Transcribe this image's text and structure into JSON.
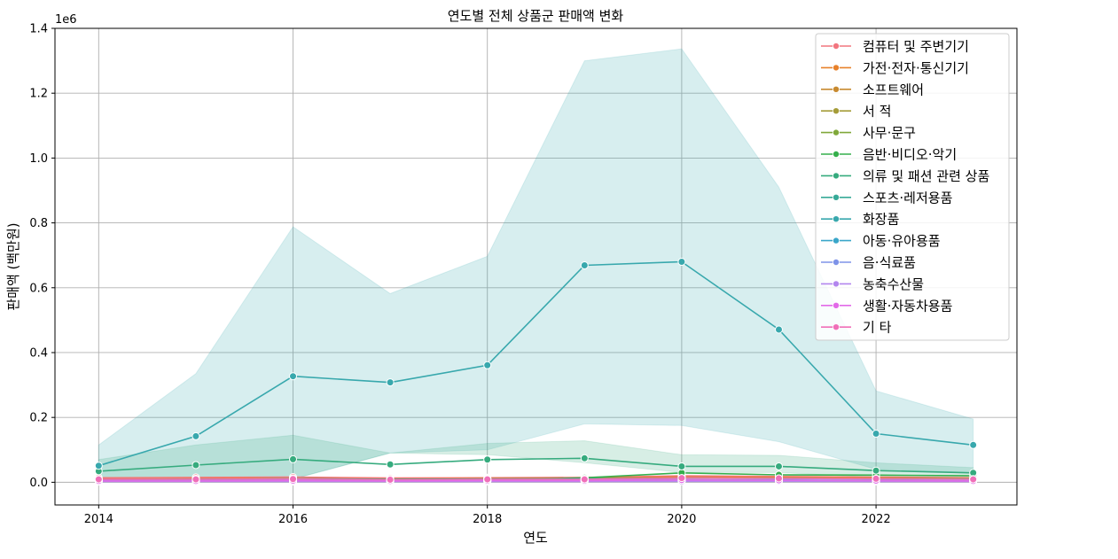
{
  "chart_data": {
    "type": "line",
    "title": "연도별 전체 상품군 판매액 변화",
    "xlabel": "연도",
    "ylabel": "판매액 (백만원)",
    "y_offset_text": "1e6",
    "x_range": [
      2013.55,
      2023.45
    ],
    "y_range": [
      -70000,
      1400000
    ],
    "x_ticks": [
      2014,
      2016,
      2018,
      2020,
      2022
    ],
    "y_ticks": [
      0,
      200000,
      400000,
      600000,
      800000,
      1000000,
      1200000,
      1400000
    ],
    "y_tick_labels": [
      "0.0",
      "0.2",
      "0.4",
      "0.6",
      "0.8",
      "1.0",
      "1.2",
      "1.4"
    ],
    "grid": true,
    "legend_position": "top-right",
    "x": [
      2014,
      2015,
      2016,
      2017,
      2018,
      2019,
      2020,
      2021,
      2022,
      2023
    ],
    "series": [
      {
        "name": "컴퓨터 및 주변기기",
        "color": "#f2767f",
        "values": [
          14000,
          15000,
          16000,
          13000,
          14000,
          15000,
          20000,
          18000,
          16000,
          14000
        ]
      },
      {
        "name": "가전·전자·통신기기",
        "color": "#e8812b",
        "values": [
          10000,
          11000,
          12000,
          10000,
          12000,
          13000,
          16000,
          15000,
          14000,
          12000
        ]
      },
      {
        "name": "소프트웨어",
        "color": "#c88a30",
        "values": [
          5000,
          5000,
          5000,
          4000,
          4000,
          4000,
          5000,
          5000,
          4000,
          4000
        ]
      },
      {
        "name": "서 적",
        "color": "#a59c38",
        "values": [
          9000,
          9000,
          10000,
          9000,
          10000,
          10000,
          12000,
          12000,
          11000,
          10000
        ]
      },
      {
        "name": "사무·문구",
        "color": "#80a83a",
        "values": [
          3000,
          3000,
          3000,
          3000,
          3000,
          3000,
          4000,
          4000,
          3000,
          3000
        ]
      },
      {
        "name": "음반·비디오·악기",
        "color": "#35af4b",
        "values": [
          3000,
          3000,
          3000,
          3000,
          4000,
          14000,
          29000,
          23000,
          22000,
          20000
        ]
      },
      {
        "name": "의류 및 패션 관련 상품",
        "color": "#36ab7e",
        "values": [
          34000,
          53000,
          71000,
          55000,
          70000,
          74000,
          49000,
          49000,
          36000,
          29000
        ]
      },
      {
        "name": "스포츠·레저용품",
        "color": "#37aa98",
        "values": [
          8000,
          9000,
          11000,
          9000,
          10000,
          11000,
          13000,
          12000,
          11000,
          10000
        ]
      },
      {
        "name": "화장품",
        "color": "#38a8ad",
        "values": [
          51000,
          142000,
          327000,
          308000,
          361000,
          669000,
          680000,
          471000,
          150000,
          115000
        ]
      },
      {
        "name": "아동·유아용품",
        "color": "#3aa6c9",
        "values": [
          5000,
          5000,
          6000,
          5000,
          6000,
          6000,
          7000,
          6000,
          5000,
          5000
        ]
      },
      {
        "name": "음·식료품",
        "color": "#7e93e8",
        "values": [
          5000,
          5000,
          6000,
          5000,
          6000,
          6000,
          8000,
          7000,
          6000,
          5000
        ]
      },
      {
        "name": "농축수산물",
        "color": "#b386ee",
        "values": [
          2000,
          2000,
          2000,
          2000,
          2000,
          2000,
          3000,
          3000,
          2000,
          2000
        ]
      },
      {
        "name": "생활·자동차용품",
        "color": "#e26ae8",
        "values": [
          4000,
          4000,
          5000,
          4000,
          5000,
          5000,
          7000,
          6000,
          5000,
          4000
        ]
      },
      {
        "name": "기 타",
        "color": "#f06fb8",
        "values": [
          9000,
          9000,
          10000,
          8000,
          9000,
          9000,
          13000,
          12000,
          11000,
          9000
        ]
      }
    ],
    "confidence_bands": [
      {
        "series": "화장품",
        "lower": [
          10000,
          10000,
          10000,
          90000,
          100000,
          180000,
          175000,
          125000,
          40000,
          30000
        ],
        "upper": [
          115000,
          335000,
          788000,
          582000,
          697000,
          1300000,
          1337000,
          910000,
          282000,
          195000
        ]
      },
      {
        "series": "의류 및 패션 관련 상품",
        "lower": [
          5000,
          8000,
          10000,
          90000,
          85000,
          60000,
          30000,
          30000,
          15000,
          10000
        ],
        "upper": [
          70000,
          115000,
          145000,
          90000,
          120000,
          128000,
          85000,
          83000,
          60000,
          45000
        ]
      }
    ]
  }
}
